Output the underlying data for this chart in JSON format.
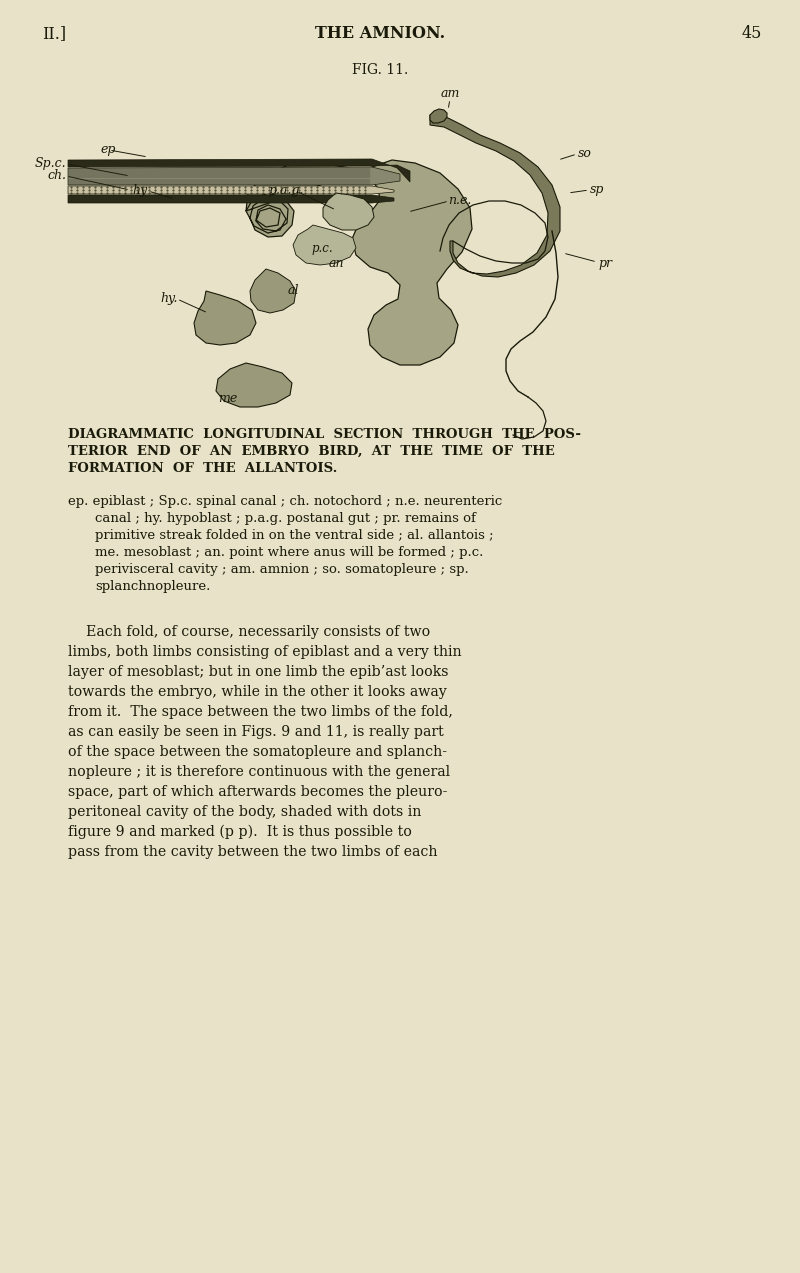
{
  "bg_color": "#e8e3c8",
  "dark": "#1a1a0a",
  "page_number": "45",
  "chapter_num": "II.]",
  "chapter_title": "THE AMNION.",
  "fig_label": "FIG. 11.",
  "caption": [
    "DIAGRAMMATIC  LONGITUDINAL  SECTION  THROUGH  THE  POS-",
    "TERIOR  END  OF  AN  EMBRYO  BIRD,  AT  THE  TIME  OF  THE",
    "FORMATION  OF  THE  ALLANTOIS."
  ],
  "legend": [
    "ep. epiblast ; Sp.c. spinal canal ; ch. notochord ; n.e. neurenteric",
    "canal ; hy. hypoblast ; p.a.g. postanal gut ; pr. remains of",
    "primitive streak folded in on the ventral side ; al. allantois ;",
    "me. mesoblast ; an. point where anus will be formed ; p.c.",
    "perivisceral cavity ; am. amnion ; so. somatopleure ; sp.",
    "splanchnopleure."
  ],
  "body": [
    "    Each fold, of course, necessarily consists of two",
    "limbs, both limbs consisting of epiblast and a very thin",
    "layer of mesoblast; but in one limb the epib’ast looks",
    "towards the embryo, while in the other it looks away",
    "from it.  The space between the two limbs of the fold,",
    "as can easily be seen in Figs. 9 and 11, is really part",
    "of the space between the somatopleure and splanch-",
    "nopleure ; it is therefore continuous with the general",
    "space, part of which afterwards becomes the pleuro-",
    "peritoneal cavity of the body, shaded with dots in",
    "figure 9 and marked (p p).  It is thus possible to",
    "pass from the cavity between the two limbs of each"
  ]
}
